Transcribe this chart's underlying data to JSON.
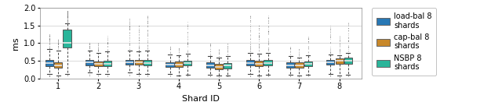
{
  "title": "",
  "xlabel": "Shard ID",
  "ylabel": "ms",
  "ylim": [
    0.0,
    2.0
  ],
  "yticks": [
    0.0,
    0.5,
    1.0,
    1.5,
    2.0
  ],
  "n_shards": 8,
  "colors": {
    "load_bal": "#2878b5",
    "cap_bal": "#c8882a",
    "nsbp": "#2ab59a"
  },
  "legend_labels": [
    "load-bal 8\nshards",
    "cap-bal 8\nshards",
    "NSBP 8\nshards"
  ],
  "box_width": 0.2,
  "series_offsets": [
    -0.22,
    0.0,
    0.22
  ],
  "shard_positions": [
    1,
    2,
    3,
    4,
    5,
    6,
    7,
    8
  ],
  "load_bal": {
    "medians": [
      0.43,
      0.45,
      0.46,
      0.4,
      0.38,
      0.44,
      0.38,
      0.46
    ],
    "q1": [
      0.35,
      0.38,
      0.39,
      0.33,
      0.31,
      0.37,
      0.31,
      0.39
    ],
    "q3": [
      0.52,
      0.53,
      0.53,
      0.46,
      0.45,
      0.52,
      0.45,
      0.52
    ],
    "whislo": [
      0.12,
      0.17,
      0.17,
      0.12,
      0.11,
      0.12,
      0.11,
      0.12
    ],
    "whishi": [
      0.82,
      0.78,
      0.78,
      0.68,
      0.63,
      0.73,
      0.63,
      0.68
    ],
    "fliers_high": [
      1.25,
      1.0,
      1.7,
      0.9,
      1.0,
      1.8,
      0.9,
      1.5
    ],
    "fliers_low": [
      0.05,
      0.08,
      0.08,
      0.05,
      0.05,
      0.05,
      0.05,
      0.05
    ],
    "n_fliers_high": [
      40,
      20,
      50,
      15,
      20,
      50,
      15,
      35
    ],
    "n_fliers_low": [
      8,
      5,
      5,
      4,
      4,
      5,
      4,
      5
    ]
  },
  "cap_bal": {
    "medians": [
      0.38,
      0.41,
      0.46,
      0.4,
      0.33,
      0.42,
      0.38,
      0.5
    ],
    "q1": [
      0.3,
      0.34,
      0.39,
      0.33,
      0.26,
      0.35,
      0.31,
      0.42
    ],
    "q3": [
      0.46,
      0.48,
      0.53,
      0.47,
      0.41,
      0.5,
      0.45,
      0.57
    ],
    "whislo": [
      0.09,
      0.13,
      0.13,
      0.09,
      0.08,
      0.09,
      0.09,
      0.09
    ],
    "whishi": [
      0.78,
      0.73,
      0.76,
      0.66,
      0.58,
      0.7,
      0.6,
      0.66
    ],
    "fliers_high": [
      1.1,
      1.0,
      1.5,
      0.9,
      0.85,
      1.5,
      0.85,
      1.2
    ],
    "fliers_low": [
      0.04,
      0.06,
      0.06,
      0.04,
      0.04,
      0.04,
      0.04,
      0.04
    ],
    "n_fliers_high": [
      30,
      20,
      45,
      12,
      15,
      45,
      12,
      30
    ],
    "n_fliers_low": [
      6,
      4,
      4,
      3,
      3,
      4,
      3,
      4
    ]
  },
  "nsbp": {
    "medians": [
      1.0,
      0.42,
      0.44,
      0.43,
      0.36,
      0.44,
      0.41,
      0.5
    ],
    "q1": [
      0.88,
      0.35,
      0.37,
      0.36,
      0.29,
      0.37,
      0.34,
      0.42
    ],
    "q3": [
      1.38,
      0.5,
      0.53,
      0.5,
      0.44,
      0.52,
      0.48,
      0.58
    ],
    "whislo": [
      0.13,
      0.13,
      0.13,
      0.11,
      0.09,
      0.11,
      0.11,
      0.11
    ],
    "whishi": [
      1.55,
      0.76,
      0.78,
      0.7,
      0.63,
      0.73,
      0.66,
      0.73
    ],
    "fliers_high": [
      1.92,
      1.2,
      1.8,
      1.6,
      1.0,
      1.8,
      1.2,
      1.6
    ],
    "fliers_low": [
      0.06,
      0.06,
      0.06,
      0.06,
      0.05,
      0.06,
      0.06,
      0.06
    ],
    "n_fliers_high": [
      60,
      25,
      55,
      40,
      20,
      55,
      25,
      40
    ],
    "n_fliers_low": [
      5,
      5,
      5,
      4,
      4,
      5,
      4,
      4
    ]
  }
}
